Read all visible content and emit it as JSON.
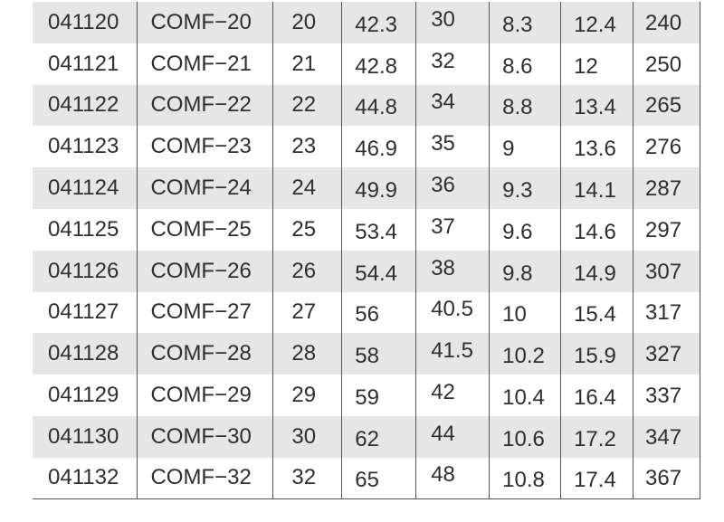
{
  "table": {
    "rows": [
      [
        "041120",
        "COMF−20",
        "20",
        "42.3",
        "30",
        "8.3",
        "12.4",
        "240"
      ],
      [
        "041121",
        "COMF−21",
        "21",
        "42.8",
        "32",
        "8.6",
        "12",
        "250"
      ],
      [
        "041122",
        "COMF−22",
        "22",
        "44.8",
        "34",
        "8.8",
        "13.4",
        "265"
      ],
      [
        "041123",
        "COMF−23",
        "23",
        "46.9",
        "35",
        "9",
        "13.6",
        "276"
      ],
      [
        "041124",
        "COMF−24",
        "24",
        "49.9",
        "36",
        "9.3",
        "14.1",
        "287"
      ],
      [
        "041125",
        "COMF−25",
        "25",
        "53.4",
        "37",
        "9.6",
        "14.6",
        "297"
      ],
      [
        "041126",
        "COMF−26",
        "26",
        "54.4",
        "38",
        "9.8",
        "14.9",
        "307"
      ],
      [
        "041127",
        "COMF−27",
        "27",
        "56",
        "40.5",
        "10",
        "15.4",
        "317"
      ],
      [
        "041128",
        "COMF−28",
        "28",
        "58",
        "41.5",
        "10.2",
        "15.9",
        "327"
      ],
      [
        "041129",
        "COMF−29",
        "29",
        "59",
        "42",
        "10.4",
        "16.4",
        "337"
      ],
      [
        "041130",
        "COMF−30",
        "30",
        "62",
        "44",
        "10.6",
        "17.2",
        "347"
      ],
      [
        "041132",
        "COMF−32",
        "32",
        "65",
        "48",
        "10.8",
        "17.4",
        "367"
      ]
    ],
    "stripe_color": "#e6e6e6",
    "border_color": "#555555"
  }
}
